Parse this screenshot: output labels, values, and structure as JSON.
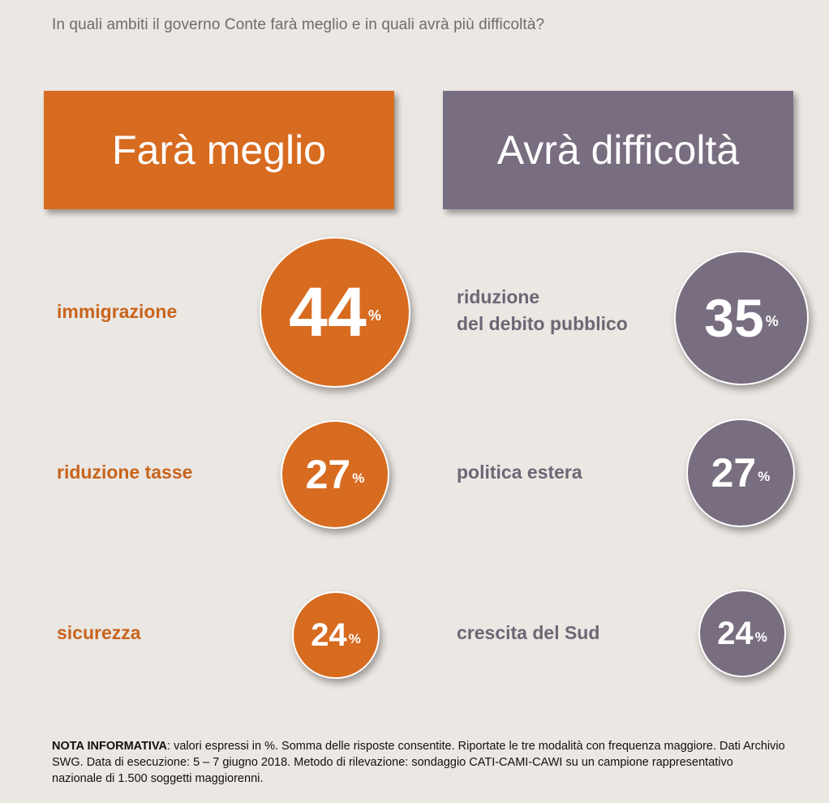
{
  "question": "In quali ambiti il governo Conte farà meglio e in quali avrà più difficoltà?",
  "colors": {
    "orange": "#d76b20",
    "purple": "#786e80",
    "orange_text": "#c8641c",
    "purple_text": "#6f6575"
  },
  "left": {
    "title": "Farà meglio",
    "items": [
      {
        "label": "immigrazione",
        "value": "44",
        "unit": "%"
      },
      {
        "label": "riduzione tasse",
        "value": "27",
        "unit": "%"
      },
      {
        "label": "sicurezza",
        "value": "24",
        "unit": "%"
      }
    ]
  },
  "right": {
    "title": "Avrà difficoltà",
    "items": [
      {
        "label_line1": "riduzione",
        "label_line2": "del debito pubblico",
        "value": "35",
        "unit": "%"
      },
      {
        "label": "politica estera",
        "value": "27",
        "unit": "%"
      },
      {
        "label": "crescita del Sud",
        "value": "24",
        "unit": "%"
      }
    ]
  },
  "chart_data": {
    "type": "bubble",
    "series": [
      {
        "name": "Farà meglio",
        "categories": [
          "immigrazione",
          "riduzione tasse",
          "sicurezza"
        ],
        "values": [
          44,
          27,
          24
        ]
      },
      {
        "name": "Avrà difficoltà",
        "categories": [
          "riduzione del debito pubblico",
          "politica estera",
          "crescita del Sud"
        ],
        "values": [
          35,
          27,
          24
        ]
      }
    ],
    "unit": "%"
  },
  "note": {
    "bold": "NOTA INFORMATIVA",
    "text": ": valori espressi in %. Somma delle risposte consentite. Riportate le tre modalità con frequenza maggiore. Dati Archivio SWG. Data di esecuzione: 5 – 7 giugno 2018. Metodo di rilevazione: sondaggio CATI-CAMI-CAWI su un campione rappresentativo nazionale di 1.500 soggetti maggiorenni."
  }
}
